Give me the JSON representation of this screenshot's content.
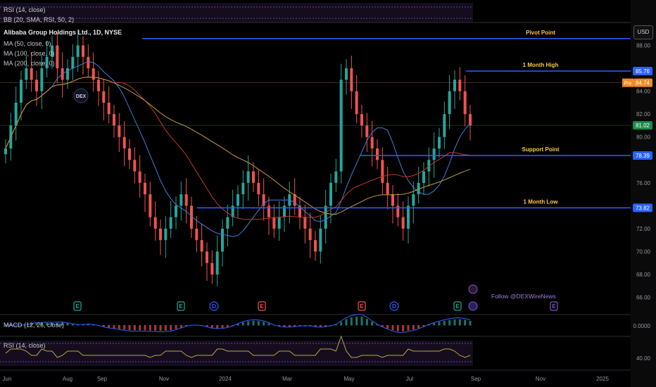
{
  "title": "Alibaba Group Holdings Ltd., 1D, NYSE",
  "indicators": {
    "rsi_top": "RSI (14, close)",
    "bb": "BB (20, SMA, RSI, 50, 2)",
    "ma50": "MA (50, close, 0)",
    "ma100": "MA (100, close, 0)",
    "ma200": "MA (200, close, 0)",
    "macd": "MACD (12, 26, close)",
    "rsi_bottom": "RSI (14, close)"
  },
  "currency_button": "USD",
  "follow_text": "Follow @DEXWireNews",
  "logo_text": "DEX",
  "colors": {
    "up": "#26a69a",
    "down": "#ef5350",
    "level": "#2962ff",
    "annotation": "#f7c948",
    "ma50": "#3f7fd6",
    "ma100": "#c0392b",
    "ma200": "#c49a3e",
    "rsi": "#b7a640",
    "rsi_band": "#7e57c2"
  },
  "chart_data": {
    "type": "candlestick",
    "x_ticks": [
      "Jun",
      "Aug",
      "Sep",
      "Nov",
      "2024",
      "Mar",
      "May",
      "Jul",
      "Sep",
      "Nov",
      "2025"
    ],
    "y_ticks": [
      "88.00",
      "84.00",
      "82.00",
      "80.00",
      "76.00",
      "72.00",
      "70.00",
      "68.00",
      "66.00"
    ],
    "ylim": [
      64.5,
      90
    ],
    "levels": [
      {
        "label": "Pivot Point",
        "value": 88.6,
        "price": ""
      },
      {
        "label": "1 Month High",
        "value": 85.76,
        "price": "85.76"
      },
      {
        "label": "Support Point",
        "value": 78.39,
        "price": "78.39"
      },
      {
        "label": "1 Month Low",
        "value": 73.82,
        "price": "73.82"
      }
    ],
    "pre_label": "Pre",
    "pre_price": "84.74",
    "last_price": "81.02",
    "macd_tick": "0.0000",
    "rsi_tick": "40.00",
    "event_markers": [
      "E",
      "E",
      "D",
      "E",
      "E",
      "D",
      "E",
      "E"
    ],
    "closes": [
      79,
      81,
      83,
      85,
      86,
      85,
      84,
      86,
      87,
      88,
      86,
      85,
      86,
      87,
      88,
      87,
      86,
      85,
      84,
      83,
      82,
      81,
      80,
      79,
      78,
      77,
      76,
      75,
      73,
      72,
      71,
      72,
      73,
      74,
      75,
      74,
      72,
      71,
      70,
      69,
      68,
      70,
      72,
      73,
      74,
      75,
      76,
      77,
      76,
      75,
      74,
      73,
      72,
      73,
      74,
      75,
      74,
      73,
      72,
      71,
      70,
      72,
      74,
      76,
      77,
      85,
      86,
      84,
      82,
      81,
      80,
      79,
      78,
      76,
      75,
      74,
      73,
      72,
      74,
      75,
      76,
      77,
      78,
      79,
      80,
      82,
      84,
      85,
      84,
      82,
      81
    ]
  }
}
